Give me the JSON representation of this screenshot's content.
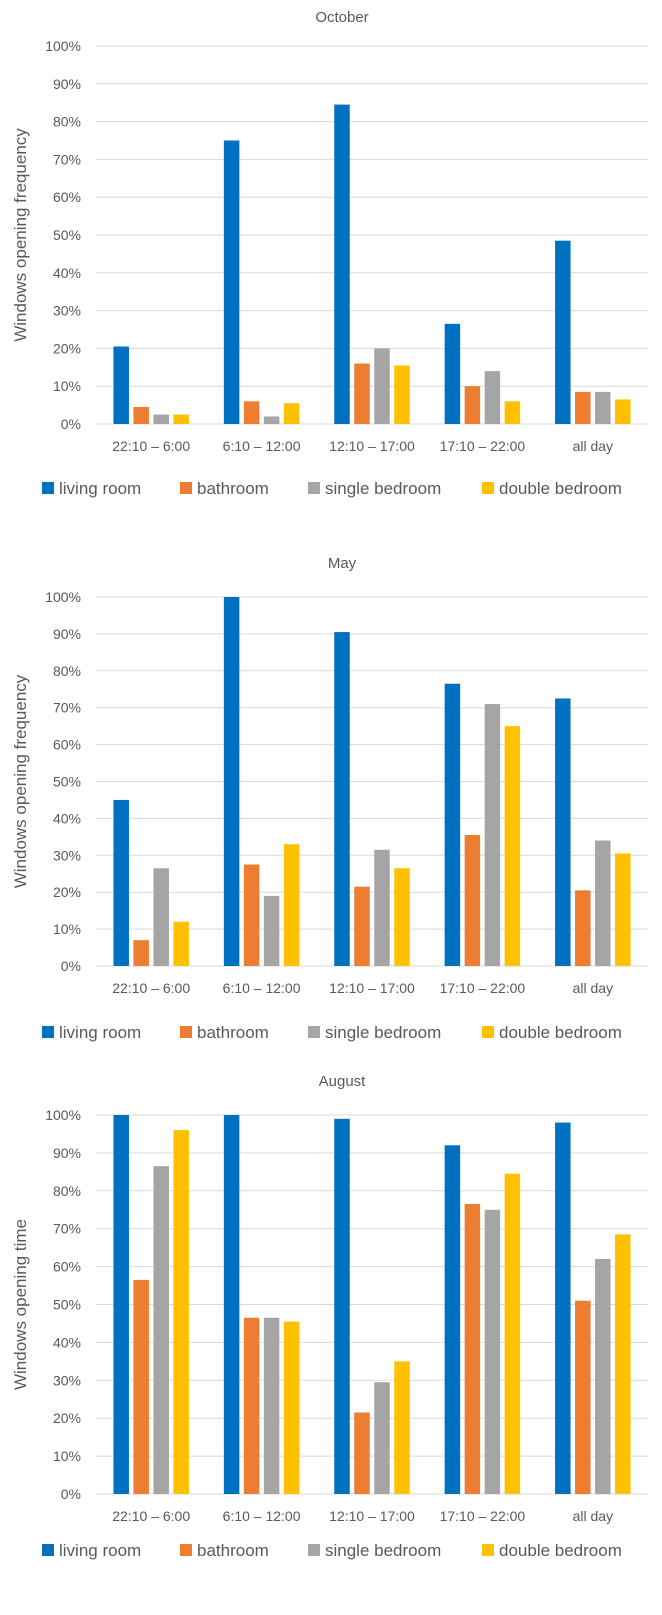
{
  "colors": {
    "living room": "#0070C0",
    "bathroom": "#ED7D31",
    "single bedroom": "#A5A5A5",
    "double bedroom": "#FFC000",
    "grid": "#D9D9D9",
    "text": "#595959"
  },
  "chart_data": [
    {
      "type": "bar",
      "title": "October",
      "ylabel": "Windows opening frequency",
      "xlabel": "",
      "ylim": [
        0,
        100
      ],
      "yticks": [
        "0%",
        "10%",
        "20%",
        "30%",
        "40%",
        "50%",
        "60%",
        "70%",
        "80%",
        "90%",
        "100%"
      ],
      "categories": [
        "22:10 – 6:00",
        "6:10 – 12:00",
        "12:10 – 17:00",
        "17:10 – 22:00",
        "all day"
      ],
      "legend_position": "bottom",
      "grid": true,
      "series": [
        {
          "name": "living room",
          "values": [
            20.5,
            75,
            84.5,
            26.5,
            48.5
          ]
        },
        {
          "name": "bathroom",
          "values": [
            4.5,
            6,
            16,
            10,
            8.5
          ]
        },
        {
          "name": "single bedroom",
          "values": [
            2.5,
            2,
            20,
            14,
            8.5
          ]
        },
        {
          "name": "double bedroom",
          "values": [
            2.5,
            5.5,
            15.5,
            6,
            6.5
          ]
        }
      ]
    },
    {
      "type": "bar",
      "title": "May",
      "ylabel": "Windows opening frequency",
      "xlabel": "",
      "ylim": [
        0,
        100
      ],
      "yticks": [
        "0%",
        "10%",
        "20%",
        "30%",
        "40%",
        "50%",
        "60%",
        "70%",
        "80%",
        "90%",
        "100%"
      ],
      "categories": [
        "22:10 – 6:00",
        "6:10 – 12:00",
        "12:10 – 17:00",
        "17:10 – 22:00",
        "all day"
      ],
      "legend_position": "bottom",
      "grid": true,
      "series": [
        {
          "name": "living room",
          "values": [
            45,
            100,
            90.5,
            76.5,
            72.5
          ]
        },
        {
          "name": "bathroom",
          "values": [
            7,
            27.5,
            21.5,
            35.5,
            20.5
          ]
        },
        {
          "name": "single bedroom",
          "values": [
            26.5,
            19,
            31.5,
            71,
            34
          ]
        },
        {
          "name": "double bedroom",
          "values": [
            12,
            33,
            26.5,
            65,
            30.5
          ]
        }
      ]
    },
    {
      "type": "bar",
      "title": "August",
      "ylabel": "Windows opening time",
      "xlabel": "",
      "ylim": [
        0,
        100
      ],
      "yticks": [
        "0%",
        "10%",
        "20%",
        "30%",
        "40%",
        "50%",
        "60%",
        "70%",
        "80%",
        "90%",
        "100%"
      ],
      "categories": [
        "22:10 – 6:00",
        "6:10 – 12:00",
        "12:10 – 17:00",
        "17:10 – 22:00",
        "all day"
      ],
      "legend_position": "bottom",
      "grid": true,
      "series": [
        {
          "name": "living room",
          "values": [
            100,
            100,
            99,
            92,
            98
          ]
        },
        {
          "name": "bathroom",
          "values": [
            56.5,
            46.5,
            21.5,
            76.5,
            51
          ]
        },
        {
          "name": "single bedroom",
          "values": [
            86.5,
            46.5,
            29.5,
            75,
            62
          ]
        },
        {
          "name": "double bedroom",
          "values": [
            96,
            45.5,
            35,
            84.5,
            68.5
          ]
        }
      ]
    }
  ]
}
